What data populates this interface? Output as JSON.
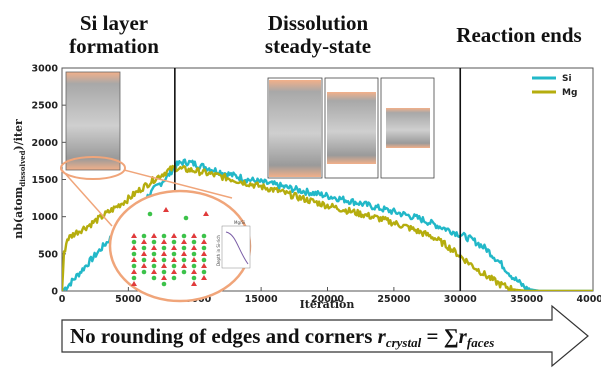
{
  "phases": [
    {
      "line1": "Si layer",
      "line2": "formation"
    },
    {
      "line1": "Dissolution",
      "line2": "steady-state"
    },
    {
      "line1": "Reaction ends",
      "line2": ""
    }
  ],
  "banner": {
    "text_start": "No rounding of edges and corners ",
    "r_symbol": "r",
    "r_sub": "crystal",
    "equals": " = ",
    "sum_symbol": "∑",
    "r2_symbol": "r",
    "r2_sub": "faces"
  },
  "inset_mini": {
    "label_top": "Mg/Si",
    "label_side": "Depth in Si-rich"
  },
  "colors": {
    "si": "#22b8c8",
    "mg": "#b5ad0e",
    "accent": "#f0a57a"
  },
  "chart_data": {
    "type": "line",
    "xlabel": "Iteration",
    "ylabel_main": "nb(atom",
    "ylabel_sub": "dissolved",
    "ylabel_end": ")/iter",
    "xlim": [
      0,
      40000
    ],
    "ylim": [
      0,
      3000
    ],
    "xticks": [
      "0",
      "5000",
      "10000",
      "15000",
      "20000",
      "25000",
      "30000",
      "35000",
      "40000"
    ],
    "yticks": [
      "0",
      "500",
      "1000",
      "1500",
      "2000",
      "2500",
      "3000"
    ],
    "vlines": [
      8500,
      30000
    ],
    "legend_position": "top-right",
    "series": [
      {
        "name": "Si",
        "color": "#22b8c8",
        "points": [
          [
            0,
            0
          ],
          [
            500,
            80
          ],
          [
            1000,
            180
          ],
          [
            2000,
            380
          ],
          [
            3000,
            580
          ],
          [
            4000,
            780
          ],
          [
            5000,
            980
          ],
          [
            6000,
            1180
          ],
          [
            7000,
            1380
          ],
          [
            8000,
            1550
          ],
          [
            8500,
            1680
          ],
          [
            9000,
            1730
          ],
          [
            9500,
            1735
          ],
          [
            10000,
            1710
          ],
          [
            12000,
            1600
          ],
          [
            14000,
            1500
          ],
          [
            16000,
            1430
          ],
          [
            18000,
            1350
          ],
          [
            20000,
            1280
          ],
          [
            22000,
            1200
          ],
          [
            24000,
            1110
          ],
          [
            26000,
            1020
          ],
          [
            27000,
            970
          ],
          [
            28000,
            900
          ],
          [
            29000,
            830
          ],
          [
            30000,
            760
          ],
          [
            31000,
            680
          ],
          [
            32000,
            560
          ],
          [
            33000,
            380
          ],
          [
            34000,
            180
          ],
          [
            35000,
            30
          ],
          [
            36000,
            0
          ],
          [
            40000,
            0
          ]
        ]
      },
      {
        "name": "Mg",
        "color": "#b5ad0e",
        "points": [
          [
            0,
            0
          ],
          [
            150,
            500
          ],
          [
            400,
            700
          ],
          [
            1000,
            780
          ],
          [
            2000,
            880
          ],
          [
            3000,
            1000
          ],
          [
            4000,
            1120
          ],
          [
            5000,
            1240
          ],
          [
            6000,
            1380
          ],
          [
            7000,
            1510
          ],
          [
            8000,
            1620
          ],
          [
            8500,
            1660
          ],
          [
            9000,
            1640
          ],
          [
            10000,
            1620
          ],
          [
            12000,
            1540
          ],
          [
            14000,
            1450
          ],
          [
            16000,
            1360
          ],
          [
            18000,
            1250
          ],
          [
            20000,
            1150
          ],
          [
            22000,
            1060
          ],
          [
            24000,
            970
          ],
          [
            26000,
            860
          ],
          [
            28000,
            720
          ],
          [
            29000,
            610
          ],
          [
            30000,
            470
          ],
          [
            31000,
            330
          ],
          [
            32000,
            200
          ],
          [
            33000,
            90
          ],
          [
            34000,
            20
          ],
          [
            35000,
            0
          ],
          [
            40000,
            0
          ]
        ]
      }
    ]
  }
}
